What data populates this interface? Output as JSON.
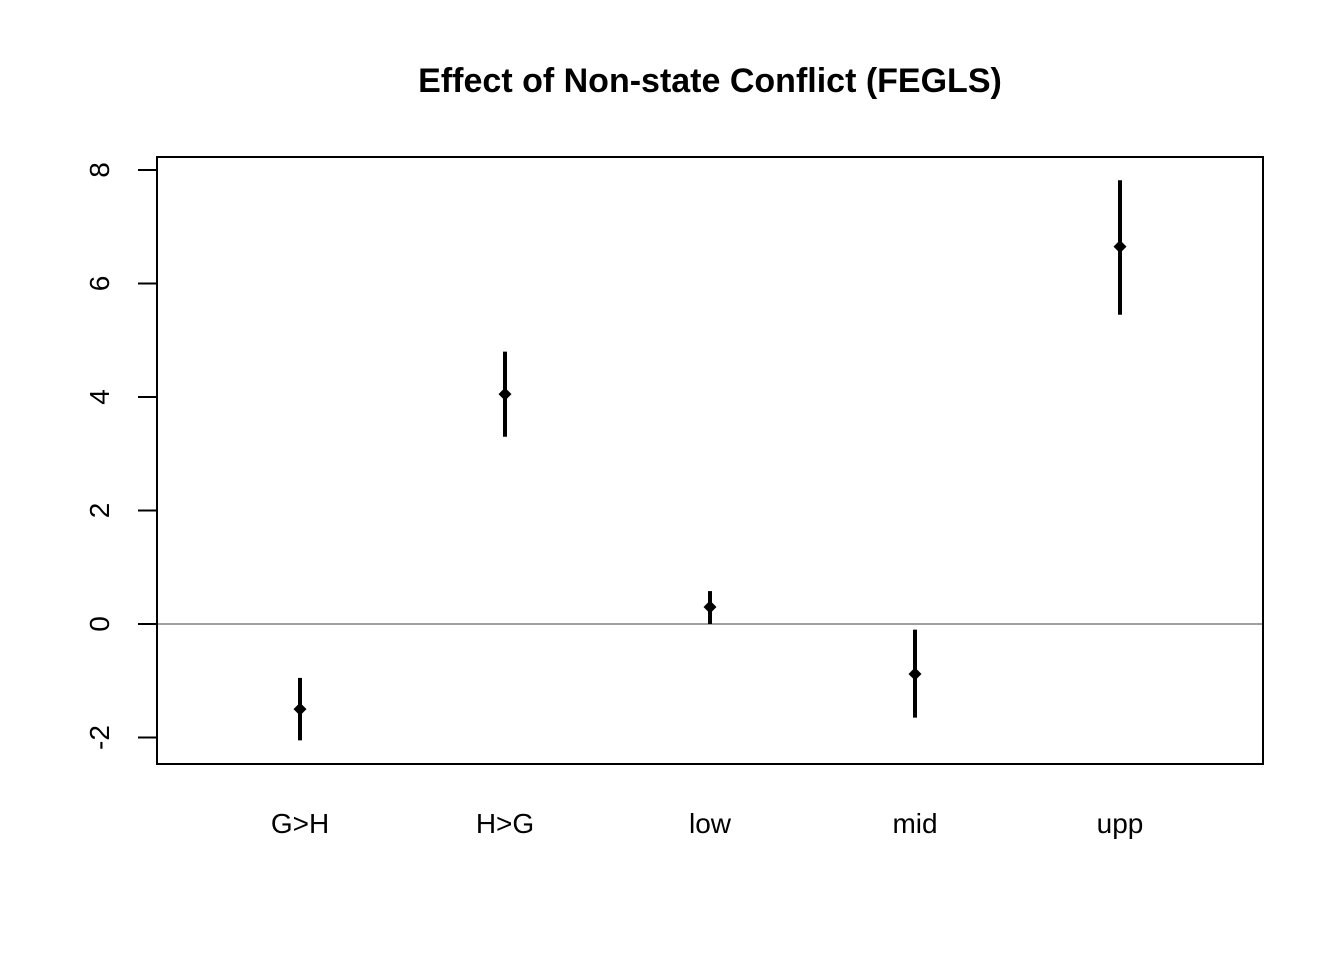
{
  "chart_data": {
    "type": "scatter",
    "title": "Effect of Non-state Conflict (FEGLS)",
    "xlabel": "",
    "ylabel": "",
    "categories": [
      "G>H",
      "H>G",
      "low",
      "mid",
      "upp"
    ],
    "series": [
      {
        "estimate": [
          -1.5,
          4.05,
          0.3,
          -0.88,
          6.65
        ],
        "lower": [
          -2.05,
          3.3,
          0.0,
          -1.65,
          5.45
        ],
        "upper": [
          -0.95,
          4.8,
          0.58,
          -0.1,
          7.82
        ]
      }
    ],
    "yticks": [
      -2,
      0,
      2,
      4,
      6,
      8
    ],
    "ylim": [
      -2.45,
      8.22
    ],
    "reference_line": 0,
    "grid": false,
    "legend": "none",
    "colors": {
      "marks": "#000000",
      "reference_line": "#808080",
      "frame": "#000000"
    }
  }
}
